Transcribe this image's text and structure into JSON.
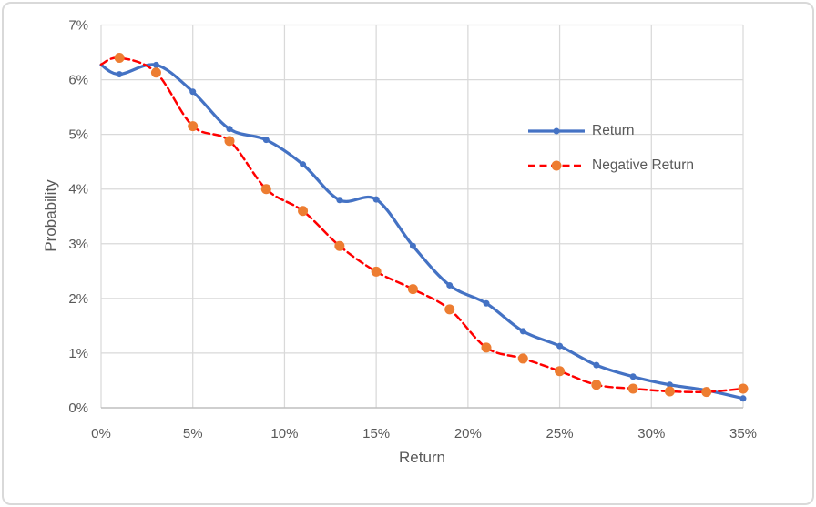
{
  "chart_data": {
    "type": "line",
    "xlabel": "Return",
    "ylabel": "Probability",
    "x": [
      0,
      1,
      3,
      5,
      7,
      9,
      11,
      13,
      15,
      17,
      19,
      21,
      23,
      25,
      27,
      29,
      31,
      33,
      35
    ],
    "series": [
      {
        "name": "Return",
        "line_color": "#4472C4",
        "line_style": "solid",
        "line_width": 3.25,
        "marker": "circle",
        "marker_color": "#4472C4",
        "marker_diameter": 7,
        "values": [
          6.27,
          6.1,
          6.27,
          5.78,
          5.1,
          4.9,
          4.45,
          3.8,
          3.81,
          2.96,
          2.24,
          1.91,
          1.4,
          1.13,
          0.78,
          0.57,
          0.42,
          0.32,
          0.17
        ]
      },
      {
        "name": "Negative Return",
        "line_color": "#FF0000",
        "line_style": "dashed",
        "line_width": 2.5,
        "marker": "circle",
        "marker_color": "#ED7D31",
        "marker_diameter": 11,
        "values": [
          6.28,
          6.4,
          6.13,
          5.15,
          4.88,
          4.0,
          3.6,
          2.96,
          2.49,
          2.17,
          1.8,
          1.1,
          0.9,
          0.67,
          0.42,
          0.35,
          0.3,
          0.29,
          0.35
        ]
      }
    ],
    "xlim": [
      0,
      35
    ],
    "ylim": [
      0,
      7
    ],
    "x_ticks": {
      "values": [
        0,
        5,
        10,
        15,
        20,
        25,
        30,
        35
      ],
      "labels": [
        "0%",
        "5%",
        "10%",
        "15%",
        "20%",
        "25%",
        "30%",
        "35%"
      ]
    },
    "y_ticks": {
      "values": [
        0,
        1,
        2,
        3,
        4,
        5,
        6,
        7
      ],
      "labels": [
        "0%",
        "1%",
        "2%",
        "3%",
        "4%",
        "5%",
        "6%",
        "7%"
      ]
    },
    "grid": true,
    "smoothed_lines": true,
    "legend_position": "inside-right",
    "colors": {
      "grid": "#D9D9D9",
      "axis_line": "#BFBFBF",
      "text": "#595959",
      "chart_border": "#D9D9D9",
      "background": "#FFFFFF"
    }
  }
}
